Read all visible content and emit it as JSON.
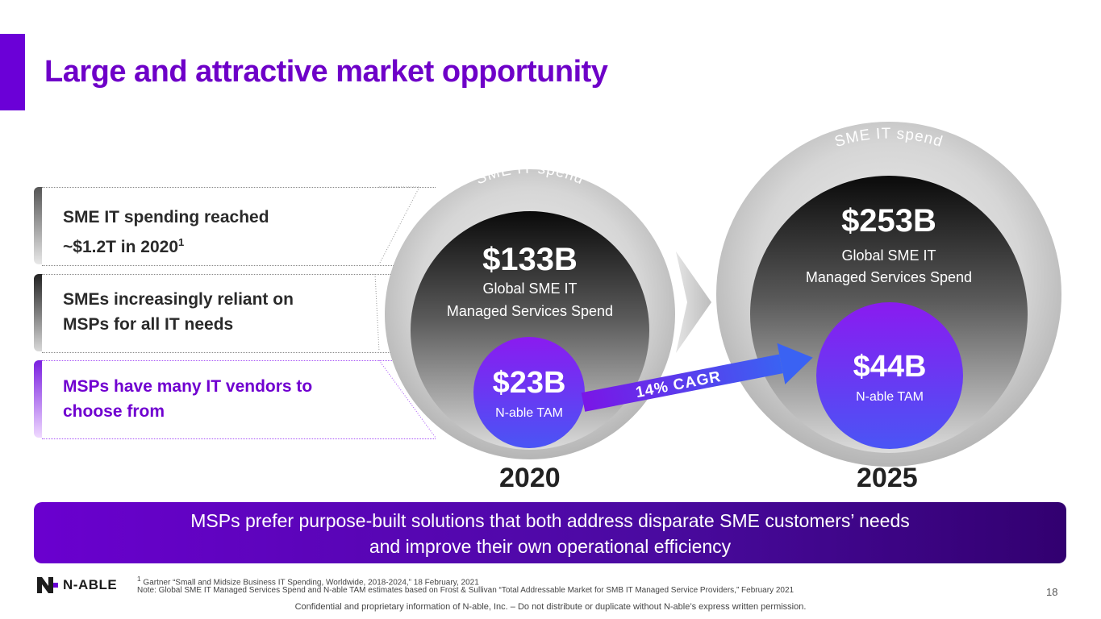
{
  "title": "Large and attractive market opportunity",
  "bullets": [
    {
      "line1": " SME IT spending reached",
      "line2_pre": "~$1.2T in 2020",
      "line2_sup": "1"
    },
    {
      "line1": "SMEs increasingly reliant on",
      "line2": "MSPs for all IT needs"
    },
    {
      "line1": "MSPs have many IT vendors to",
      "line2": "choose from"
    }
  ],
  "circles": {
    "c2020": {
      "arc_label": "SME IT spend",
      "spend_value": "$133B",
      "spend_label_1": "Global SME IT",
      "spend_label_2": "Managed Services Spend",
      "tam_value": "$23B",
      "tam_label": "N-able TAM",
      "year": "2020"
    },
    "c2025": {
      "arc_label": "SME IT spend",
      "spend_value": "$253B",
      "spend_label_1": "Global SME IT",
      "spend_label_2": "Managed Services Spend",
      "tam_value": "$44B",
      "tam_label": "N-able TAM",
      "year": "2025"
    }
  },
  "cagr_label": "14% CAGR",
  "banner": {
    "line1": "MSPs prefer purpose-built solutions that both address disparate SME customers’ needs",
    "line2": "and improve their own operational efficiency"
  },
  "footer": {
    "logo_text": "N-ABLE",
    "footnote_sup": "1",
    "footnote1": "Gartner “Small and Midsize Business IT Spending, Worldwide, 2018-2024,” 18 February, 2021",
    "footnote2": "Note: Global SME IT Managed Services Spend and N-able TAM estimates based on Frost & Sullivan “Total Addressable Market for SMB IT Managed Service Providers,” February 2021",
    "confidential": "Confidential and proprietary information of N-able, Inc. – Do not distribute or duplicate without N-able’s express written permission.",
    "page_number": "18"
  },
  "colors": {
    "accent": "#6b00d7",
    "title": "#6e00c8",
    "banner": "#5a06b8",
    "tam_circle": "#7a2cf0"
  }
}
